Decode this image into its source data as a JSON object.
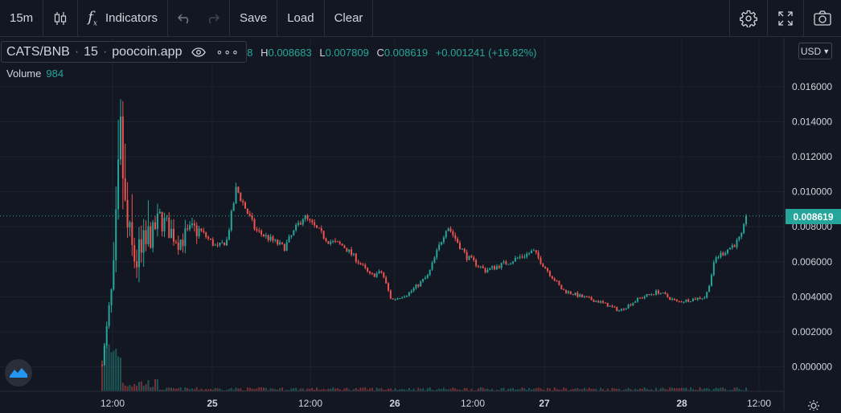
{
  "toolbar": {
    "interval": "15m",
    "indicators_label": "Indicators",
    "save_label": "Save",
    "load_label": "Load",
    "clear_label": "Clear"
  },
  "legend": {
    "symbol": "CATS/BNB",
    "interval": "15",
    "source": "poocoin.app",
    "ohlc_partial": "78",
    "high_label": "H",
    "high_value": "0.008683",
    "low_label": "L",
    "low_value": "0.007809",
    "close_label": "C",
    "close_value": "0.008619",
    "change": "+0.001241 (+16.82%)",
    "volume_label": "Volume",
    "volume_value": "984"
  },
  "currency": "USD",
  "last_price_label": "0.008619",
  "colors": {
    "background": "#131722",
    "up": "#26a69a",
    "down": "#ef5350",
    "grid": "#1e222d"
  },
  "chart_data": {
    "type": "candlestick",
    "y_axis_ticks": [
      "0.000000",
      "0.002000",
      "0.004000",
      "0.006000",
      "0.008000",
      "0.010000",
      "0.012000",
      "0.014000",
      "0.016000"
    ],
    "x_axis_ticks": [
      "12:00",
      "25",
      "12:00",
      "26",
      "12:00",
      "27",
      "28",
      "12:00"
    ],
    "ylim": [
      -0.0014,
      0.0188
    ],
    "last_price": 0.008619,
    "price_path_t": [
      0,
      0.6,
      1.0,
      1.2,
      1.5,
      2.0,
      3.0,
      4.0,
      5.0,
      6.0,
      6.5,
      7.0,
      8.0,
      9.5,
      10.5,
      11.8,
      12.6,
      13.3,
      14.0,
      14.6,
      15.1,
      16.0,
      17.0,
      18.0,
      19.0,
      20.0,
      21.0,
      22.5,
      23.1,
      24.0,
      25.0,
      26.0,
      27.0,
      28.0,
      29.0,
      30.0,
      31.5,
      32.0,
      33.1,
      33.4,
      33.6
    ],
    "price_path_v": [
      0.0001,
      0.005,
      0.013,
      0.0086,
      0.0065,
      0.006,
      0.0085,
      0.0072,
      0.0079,
      0.0068,
      0.0072,
      0.0102,
      0.0078,
      0.0068,
      0.0086,
      0.0072,
      0.0069,
      0.0061,
      0.0052,
      0.0054,
      0.0038,
      0.0042,
      0.0052,
      0.0081,
      0.0063,
      0.0055,
      0.0059,
      0.0066,
      0.0057,
      0.0044,
      0.004,
      0.0037,
      0.0032,
      0.0039,
      0.0043,
      0.0037,
      0.004,
      0.0062,
      0.0071,
      0.0075,
      0.0086
    ]
  }
}
